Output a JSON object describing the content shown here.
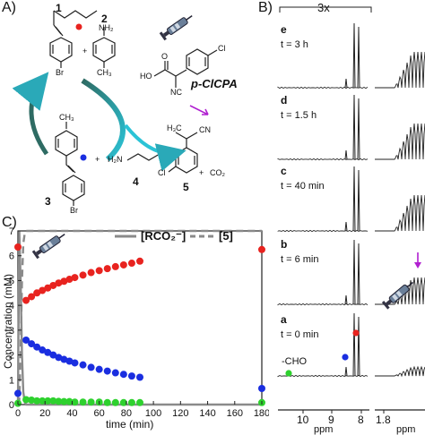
{
  "panel_labels": {
    "a": "A)",
    "b": "B)",
    "c": "C)"
  },
  "scheme": {
    "compound1": "1",
    "compound2": "2",
    "compound3": "3",
    "compound4": "4",
    "compound5": "5",
    "br_top": "Br",
    "br_bottom": "Br",
    "nh2": "NH₂",
    "ch3_top": "CH₃",
    "ch3_left": "CH₃",
    "plus1": "+",
    "plus2": "+",
    "plus3": "+",
    "ho": "HO",
    "o": "O",
    "nc": "NC",
    "cl_reagent": "Cl",
    "reagent_name": "p-ClCPA",
    "h3c": "H₃C",
    "cn": "CN",
    "cl_product": "Cl",
    "amine": "H₂N",
    "co2": "CO₂"
  },
  "nmr": {
    "scale_label": "3x",
    "ppm_label": "ppm",
    "x_ticks": [
      "10",
      "9",
      "8",
      "1.8"
    ],
    "traces": [
      {
        "letter": "e",
        "time": "t = 3 h"
      },
      {
        "letter": "d",
        "time": "t = 1.5 h"
      },
      {
        "letter": "c",
        "time": "t = 40 min"
      },
      {
        "letter": "b",
        "time": "t = 6 min"
      },
      {
        "letter": "a",
        "time": "t = 0 min"
      }
    ],
    "cho_label": "-CHO",
    "colors": {
      "red": "#e8231f",
      "blue": "#1a2ee0",
      "green": "#2ed12e",
      "arrow": "#b020d0"
    }
  },
  "chart_data": {
    "type": "scatter",
    "xlabel": "time (min)",
    "ylabel": "Concentration (mM)",
    "xlim": [
      0,
      180
    ],
    "ylim": [
      0,
      7
    ],
    "x_ticks": [
      0,
      20,
      40,
      60,
      80,
      100,
      120,
      140,
      160,
      180
    ],
    "y_ticks": [
      0,
      1,
      2,
      3,
      4,
      5,
      6,
      7
    ],
    "legend": [
      {
        "name": "[RCO₂⁻]",
        "style": "solid"
      },
      {
        "name": "[5]",
        "style": "dashed"
      }
    ],
    "series": [
      {
        "name": "red",
        "color": "#e8231f",
        "x": [
          0,
          6,
          10,
          14,
          18,
          22,
          26,
          30,
          34,
          38,
          42,
          48,
          54,
          60,
          66,
          72,
          78,
          84,
          90,
          180
        ],
        "y": [
          6.35,
          4.2,
          4.35,
          4.5,
          4.6,
          4.7,
          4.8,
          4.9,
          4.97,
          5.05,
          5.12,
          5.22,
          5.32,
          5.4,
          5.48,
          5.56,
          5.63,
          5.7,
          5.78,
          6.25
        ]
      },
      {
        "name": "blue",
        "color": "#1a2ee0",
        "x": [
          0,
          6,
          10,
          14,
          18,
          22,
          26,
          30,
          34,
          38,
          42,
          48,
          54,
          60,
          66,
          72,
          78,
          84,
          90,
          180
        ],
        "y": [
          0.45,
          2.6,
          2.45,
          2.32,
          2.2,
          2.1,
          2.0,
          1.9,
          1.82,
          1.75,
          1.68,
          1.6,
          1.5,
          1.42,
          1.35,
          1.28,
          1.22,
          1.15,
          1.1,
          0.65
        ]
      },
      {
        "name": "green",
        "color": "#2ed12e",
        "x": [
          0,
          6,
          10,
          14,
          18,
          22,
          26,
          30,
          34,
          38,
          42,
          48,
          54,
          60,
          66,
          72,
          78,
          84,
          90,
          180
        ],
        "y": [
          0.05,
          0.2,
          0.18,
          0.15,
          0.15,
          0.15,
          0.15,
          0.13,
          0.12,
          0.12,
          0.1,
          0.1,
          0.1,
          0.1,
          0.08,
          0.08,
          0.08,
          0.08,
          0.08,
          0.08
        ]
      }
    ],
    "lines": [
      {
        "name": "[RCO₂⁻]",
        "style": "solid",
        "color": "#8a8a8a",
        "x": [
          0,
          1,
          2,
          3,
          4,
          5,
          6,
          180
        ],
        "y": [
          0,
          7.0,
          5.0,
          2.0,
          0.5,
          0.1,
          0,
          0
        ]
      },
      {
        "name": "[5]",
        "style": "dashed",
        "color": "#8a8a8a",
        "x": [
          0,
          1,
          2,
          3,
          4,
          5,
          6,
          180
        ],
        "y": [
          0,
          0.2,
          2.0,
          5.0,
          6.5,
          6.9,
          7.0,
          7.0
        ]
      }
    ]
  }
}
